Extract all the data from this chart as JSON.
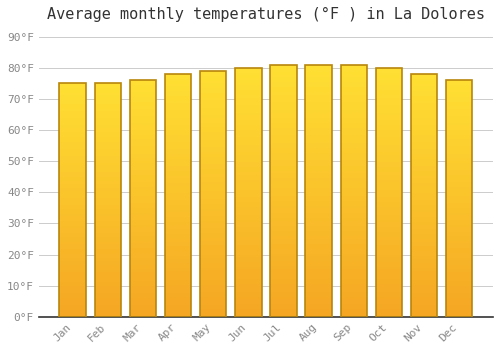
{
  "title": "Average monthly temperatures (°F ) in La Dolores",
  "months": [
    "Jan",
    "Feb",
    "Mar",
    "Apr",
    "May",
    "Jun",
    "Jul",
    "Aug",
    "Sep",
    "Oct",
    "Nov",
    "Dec"
  ],
  "values": [
    75,
    75,
    76,
    78,
    79,
    80,
    81,
    81,
    81,
    80,
    78,
    76
  ],
  "bar_color_bottom": "#F5A623",
  "bar_color_top": "#FFE033",
  "bar_edge_color": "#B8860B",
  "background_color": "#FFFFFF",
  "grid_color": "#CCCCCC",
  "ytick_labels": [
    "0°F",
    "10°F",
    "20°F",
    "30°F",
    "40°F",
    "50°F",
    "60°F",
    "70°F",
    "80°F",
    "90°F"
  ],
  "ytick_values": [
    0,
    10,
    20,
    30,
    40,
    50,
    60,
    70,
    80,
    90
  ],
  "ylim": [
    0,
    93
  ],
  "title_fontsize": 11,
  "tick_fontsize": 8,
  "tick_color": "#888888",
  "font_family": "monospace",
  "bar_width": 0.75
}
